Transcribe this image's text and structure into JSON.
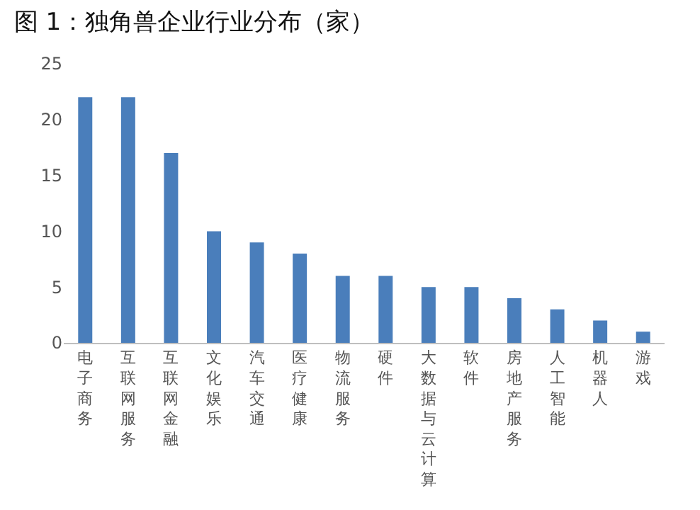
{
  "chart_data": {
    "type": "bar",
    "title": "图 1：独角兽企业行业分布（家）",
    "categories": [
      "电子商务",
      "互联网服务",
      "互联网金融",
      "文化娱乐",
      "汽车交通",
      "医疗健康",
      "物流服务",
      "硬件",
      "大数据与云计算",
      "软件",
      "房地产服务",
      "人工智能",
      "机器人",
      "游戏"
    ],
    "values": [
      22,
      22,
      17,
      10,
      9,
      8,
      6,
      6,
      5,
      5,
      4,
      3,
      2,
      1
    ],
    "color": "#4a7ebb",
    "ylim": [
      0,
      25
    ],
    "yticks": [
      0,
      5,
      10,
      15,
      20,
      25
    ],
    "grid": false
  }
}
